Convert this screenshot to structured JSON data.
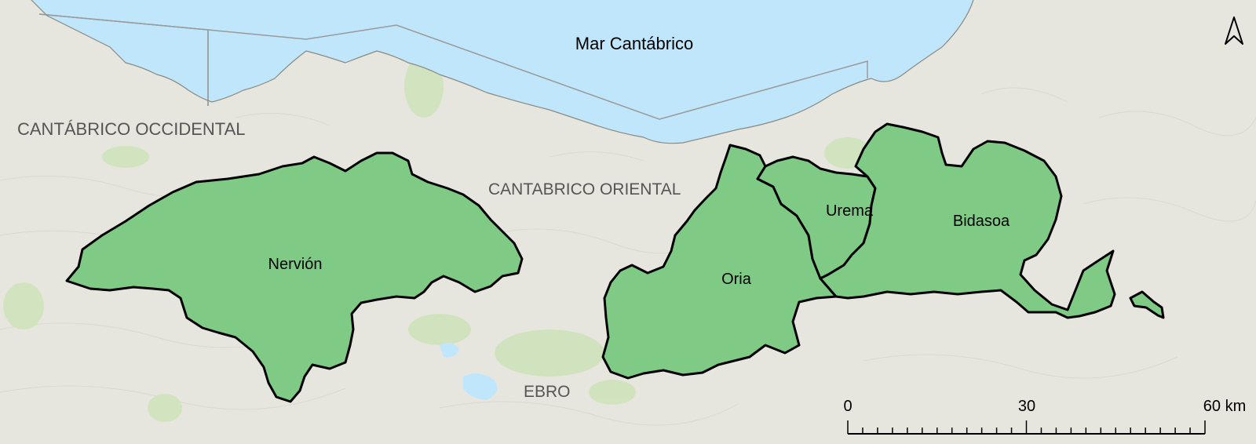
{
  "map": {
    "sea_label": "Mar Cantábrico",
    "region_labels": {
      "cantabrico_occidental": "CANTÁBRICO OCCIDENTAL",
      "cantabrico_oriental": "CANTABRICO ORIENTAL",
      "ebro": "EBRO"
    },
    "basins": {
      "nervion": "Nervión",
      "oria": "Oria",
      "urema": "Urema",
      "bidasoa": "Bidasoa"
    },
    "scale_bar": {
      "ticks": [
        "0",
        "30",
        "60 km"
      ]
    },
    "north_arrow_icon": "north-arrow-icon",
    "colors": {
      "sea": "#bfe6fb",
      "land": "#e6e6df",
      "basin_fill": "#7fcb85",
      "basin_stroke": "#000000",
      "forest": "#cfe3bb",
      "region_text": "#555555"
    }
  }
}
